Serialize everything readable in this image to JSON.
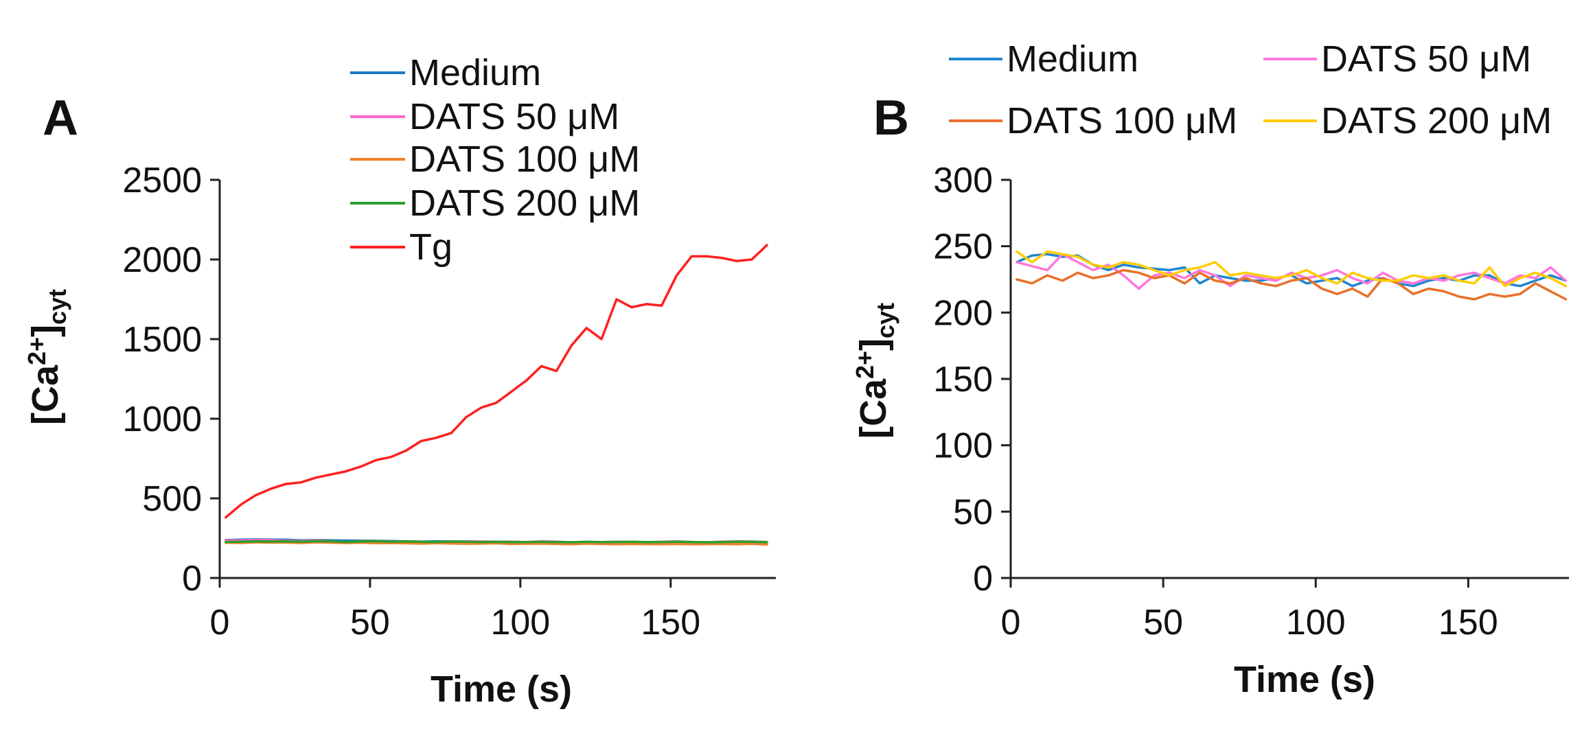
{
  "chart_data": [
    {
      "panel": "A",
      "type": "line",
      "title": "",
      "xlabel": "Time (s)",
      "ylabel": {
        "main": "[Ca",
        "sup": "2+",
        "close": "]",
        "sub": "cyt"
      },
      "xlim": [
        0,
        185
      ],
      "ylim": [
        0,
        2500
      ],
      "xticks": [
        "0",
        "50",
        "100",
        "150"
      ],
      "xtick_values": [
        0,
        50,
        100,
        150
      ],
      "yticks": [
        "0",
        "500",
        "1000",
        "1500",
        "2000",
        "2500"
      ],
      "ytick_values": [
        0,
        500,
        1000,
        1500,
        2000,
        2500
      ],
      "legend_position": "top-center",
      "x": [
        2,
        7,
        12,
        17,
        22,
        27,
        32,
        37,
        42,
        47,
        52,
        57,
        62,
        67,
        72,
        77,
        82,
        87,
        92,
        97,
        102,
        107,
        112,
        117,
        122,
        127,
        132,
        137,
        142,
        147,
        152,
        157,
        162,
        167,
        172,
        177,
        182
      ],
      "series": [
        {
          "name": "Medium",
          "color": "#1f77c4",
          "values": [
            238,
            240,
            242,
            241,
            240,
            236,
            238,
            236,
            235,
            234,
            233,
            232,
            230,
            228,
            230,
            229,
            228,
            226,
            225,
            226,
            224,
            225,
            222,
            224,
            223,
            222,
            224,
            225,
            223,
            224,
            226,
            224,
            222,
            224,
            226,
            228,
            223
          ]
        },
        {
          "name": "DATS  50 μM",
          "color": "#ff66cc",
          "values": [
            236,
            235,
            238,
            237,
            234,
            232,
            236,
            230,
            225,
            230,
            232,
            228,
            230,
            226,
            224,
            228,
            230,
            229,
            227,
            228,
            226,
            230,
            228,
            224,
            226,
            225,
            228,
            226,
            224,
            227,
            230,
            226,
            224,
            228,
            230,
            229,
            226
          ]
        },
        {
          "name": "DATS 100 μM",
          "color": "#f07f2a",
          "values": [
            222,
            220,
            224,
            222,
            223,
            220,
            224,
            222,
            220,
            222,
            219,
            220,
            218,
            216,
            219,
            217,
            215,
            216,
            218,
            214,
            215,
            216,
            214,
            212,
            216,
            214,
            212,
            214,
            213,
            212,
            214,
            212,
            213,
            214,
            212,
            215,
            210
          ]
        },
        {
          "name": "DATS 200 μM",
          "color": "#2ca02c",
          "values": [
            226,
            228,
            230,
            229,
            230,
            228,
            232,
            230,
            226,
            229,
            231,
            228,
            230,
            227,
            226,
            229,
            228,
            226,
            227,
            226,
            225,
            227,
            226,
            224,
            227,
            225,
            226,
            227,
            225,
            226,
            228,
            226,
            224,
            226,
            228,
            227,
            225
          ]
        },
        {
          "name": "Tg",
          "color": "#ff2020",
          "values": [
            380,
            460,
            520,
            560,
            590,
            600,
            630,
            650,
            670,
            700,
            740,
            760,
            800,
            860,
            880,
            910,
            1010,
            1070,
            1100,
            1170,
            1240,
            1330,
            1300,
            1460,
            1570,
            1500,
            1750,
            1700,
            1720,
            1710,
            1900,
            2020,
            2020,
            2010,
            1990,
            2000,
            2090
          ]
        }
      ]
    },
    {
      "panel": "B",
      "type": "line",
      "title": "",
      "xlabel": "Time (s)",
      "ylabel": {
        "main": "[Ca",
        "sup": "2+",
        "close": "]",
        "sub": "cyt"
      },
      "xlim": [
        0,
        183
      ],
      "ylim": [
        0,
        300
      ],
      "xticks": [
        "0",
        "50",
        "100",
        "150"
      ],
      "xtick_values": [
        0,
        50,
        100,
        150
      ],
      "yticks": [
        "0",
        "50",
        "100",
        "150",
        "200",
        "250",
        "300"
      ],
      "ytick_values": [
        0,
        50,
        100,
        150,
        200,
        250,
        300
      ],
      "legend_position": "top",
      "x": [
        2,
        7,
        12,
        17,
        22,
        27,
        32,
        37,
        42,
        47,
        52,
        57,
        62,
        67,
        72,
        77,
        82,
        87,
        92,
        97,
        102,
        107,
        112,
        117,
        122,
        127,
        132,
        137,
        142,
        147,
        152,
        157,
        162,
        167,
        172,
        177,
        182
      ],
      "series": [
        {
          "name": "Medium",
          "color": "#1f86cf",
          "values": [
            238,
            243,
            244,
            242,
            243,
            236,
            232,
            236,
            234,
            233,
            232,
            234,
            222,
            228,
            226,
            224,
            224,
            226,
            228,
            222,
            224,
            226,
            220,
            224,
            226,
            222,
            220,
            224,
            226,
            224,
            228,
            228,
            222,
            220,
            224,
            228,
            224
          ]
        },
        {
          "name": "DATS  50 μM",
          "color": "#ff77dd",
          "values": [
            238,
            235,
            232,
            244,
            238,
            232,
            236,
            228,
            218,
            228,
            230,
            226,
            232,
            228,
            220,
            228,
            226,
            224,
            230,
            226,
            228,
            232,
            226,
            222,
            230,
            224,
            222,
            226,
            224,
            228,
            230,
            226,
            222,
            228,
            226,
            234,
            224
          ]
        },
        {
          "name": "DATS 100 μM",
          "color": "#e8712a",
          "values": [
            225,
            222,
            228,
            224,
            230,
            226,
            228,
            232,
            230,
            226,
            228,
            222,
            230,
            224,
            222,
            226,
            222,
            220,
            224,
            226,
            218,
            214,
            218,
            212,
            226,
            222,
            214,
            218,
            216,
            212,
            210,
            214,
            212,
            214,
            222,
            216,
            210
          ]
        },
        {
          "name": "DATS 200 μM",
          "color": "#ffcc00",
          "values": [
            246,
            238,
            246,
            244,
            242,
            236,
            234,
            238,
            236,
            232,
            228,
            232,
            234,
            238,
            228,
            230,
            228,
            226,
            228,
            232,
            226,
            222,
            230,
            226,
            224,
            224,
            228,
            226,
            228,
            224,
            222,
            234,
            220,
            226,
            230,
            226,
            220
          ]
        }
      ]
    }
  ]
}
